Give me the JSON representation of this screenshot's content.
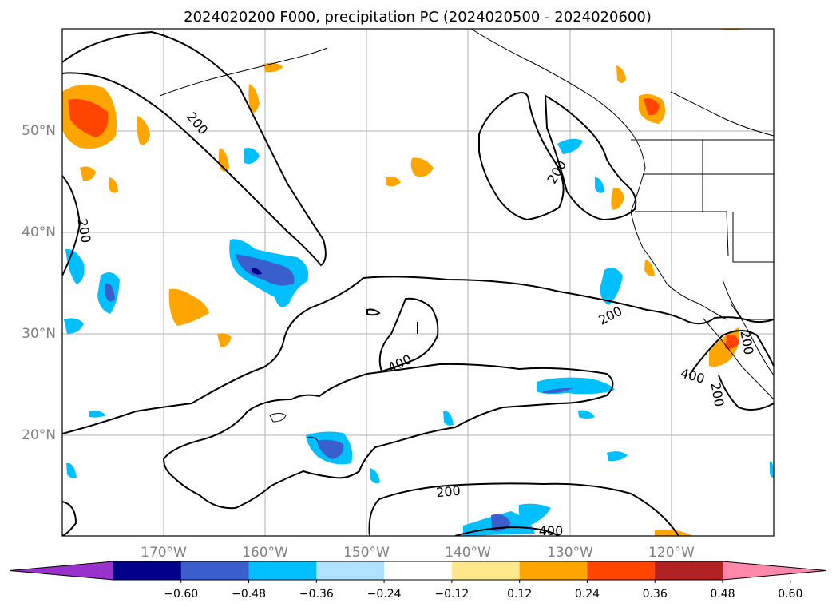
{
  "title": "2024020200 F000, precipitation PC (2024020500 - 2024020600)",
  "map": {
    "lon_range": [
      "180°",
      "110°W"
    ],
    "lat_range": [
      "10°N",
      "60°N"
    ],
    "lon_ticks": [
      "170°W",
      "160°W",
      "150°W",
      "140°W",
      "130°W",
      "120°W"
    ],
    "lat_ticks": [
      "20°N",
      "30°N",
      "40°N",
      "50°N"
    ],
    "grid": true,
    "contour_labels": [
      "200",
      "200",
      "200",
      "200",
      "200",
      "400",
      "400",
      "400",
      "200",
      "200"
    ]
  },
  "colorbar": {
    "orientation": "horizontal",
    "extend": "both",
    "colors": [
      "#9932cc",
      "#00008b",
      "#3a5fcd",
      "#00bfff",
      "#b0e2ff",
      "#ffffff",
      "#ffe78c",
      "#ffa500",
      "#ff4500",
      "#b22222",
      "#ff88aa"
    ],
    "tick_labels": [
      "−0.60",
      "−0.48",
      "−0.36",
      "−0.24",
      "−0.12",
      "0.12",
      "0.24",
      "0.36",
      "0.48",
      "0.60"
    ]
  }
}
